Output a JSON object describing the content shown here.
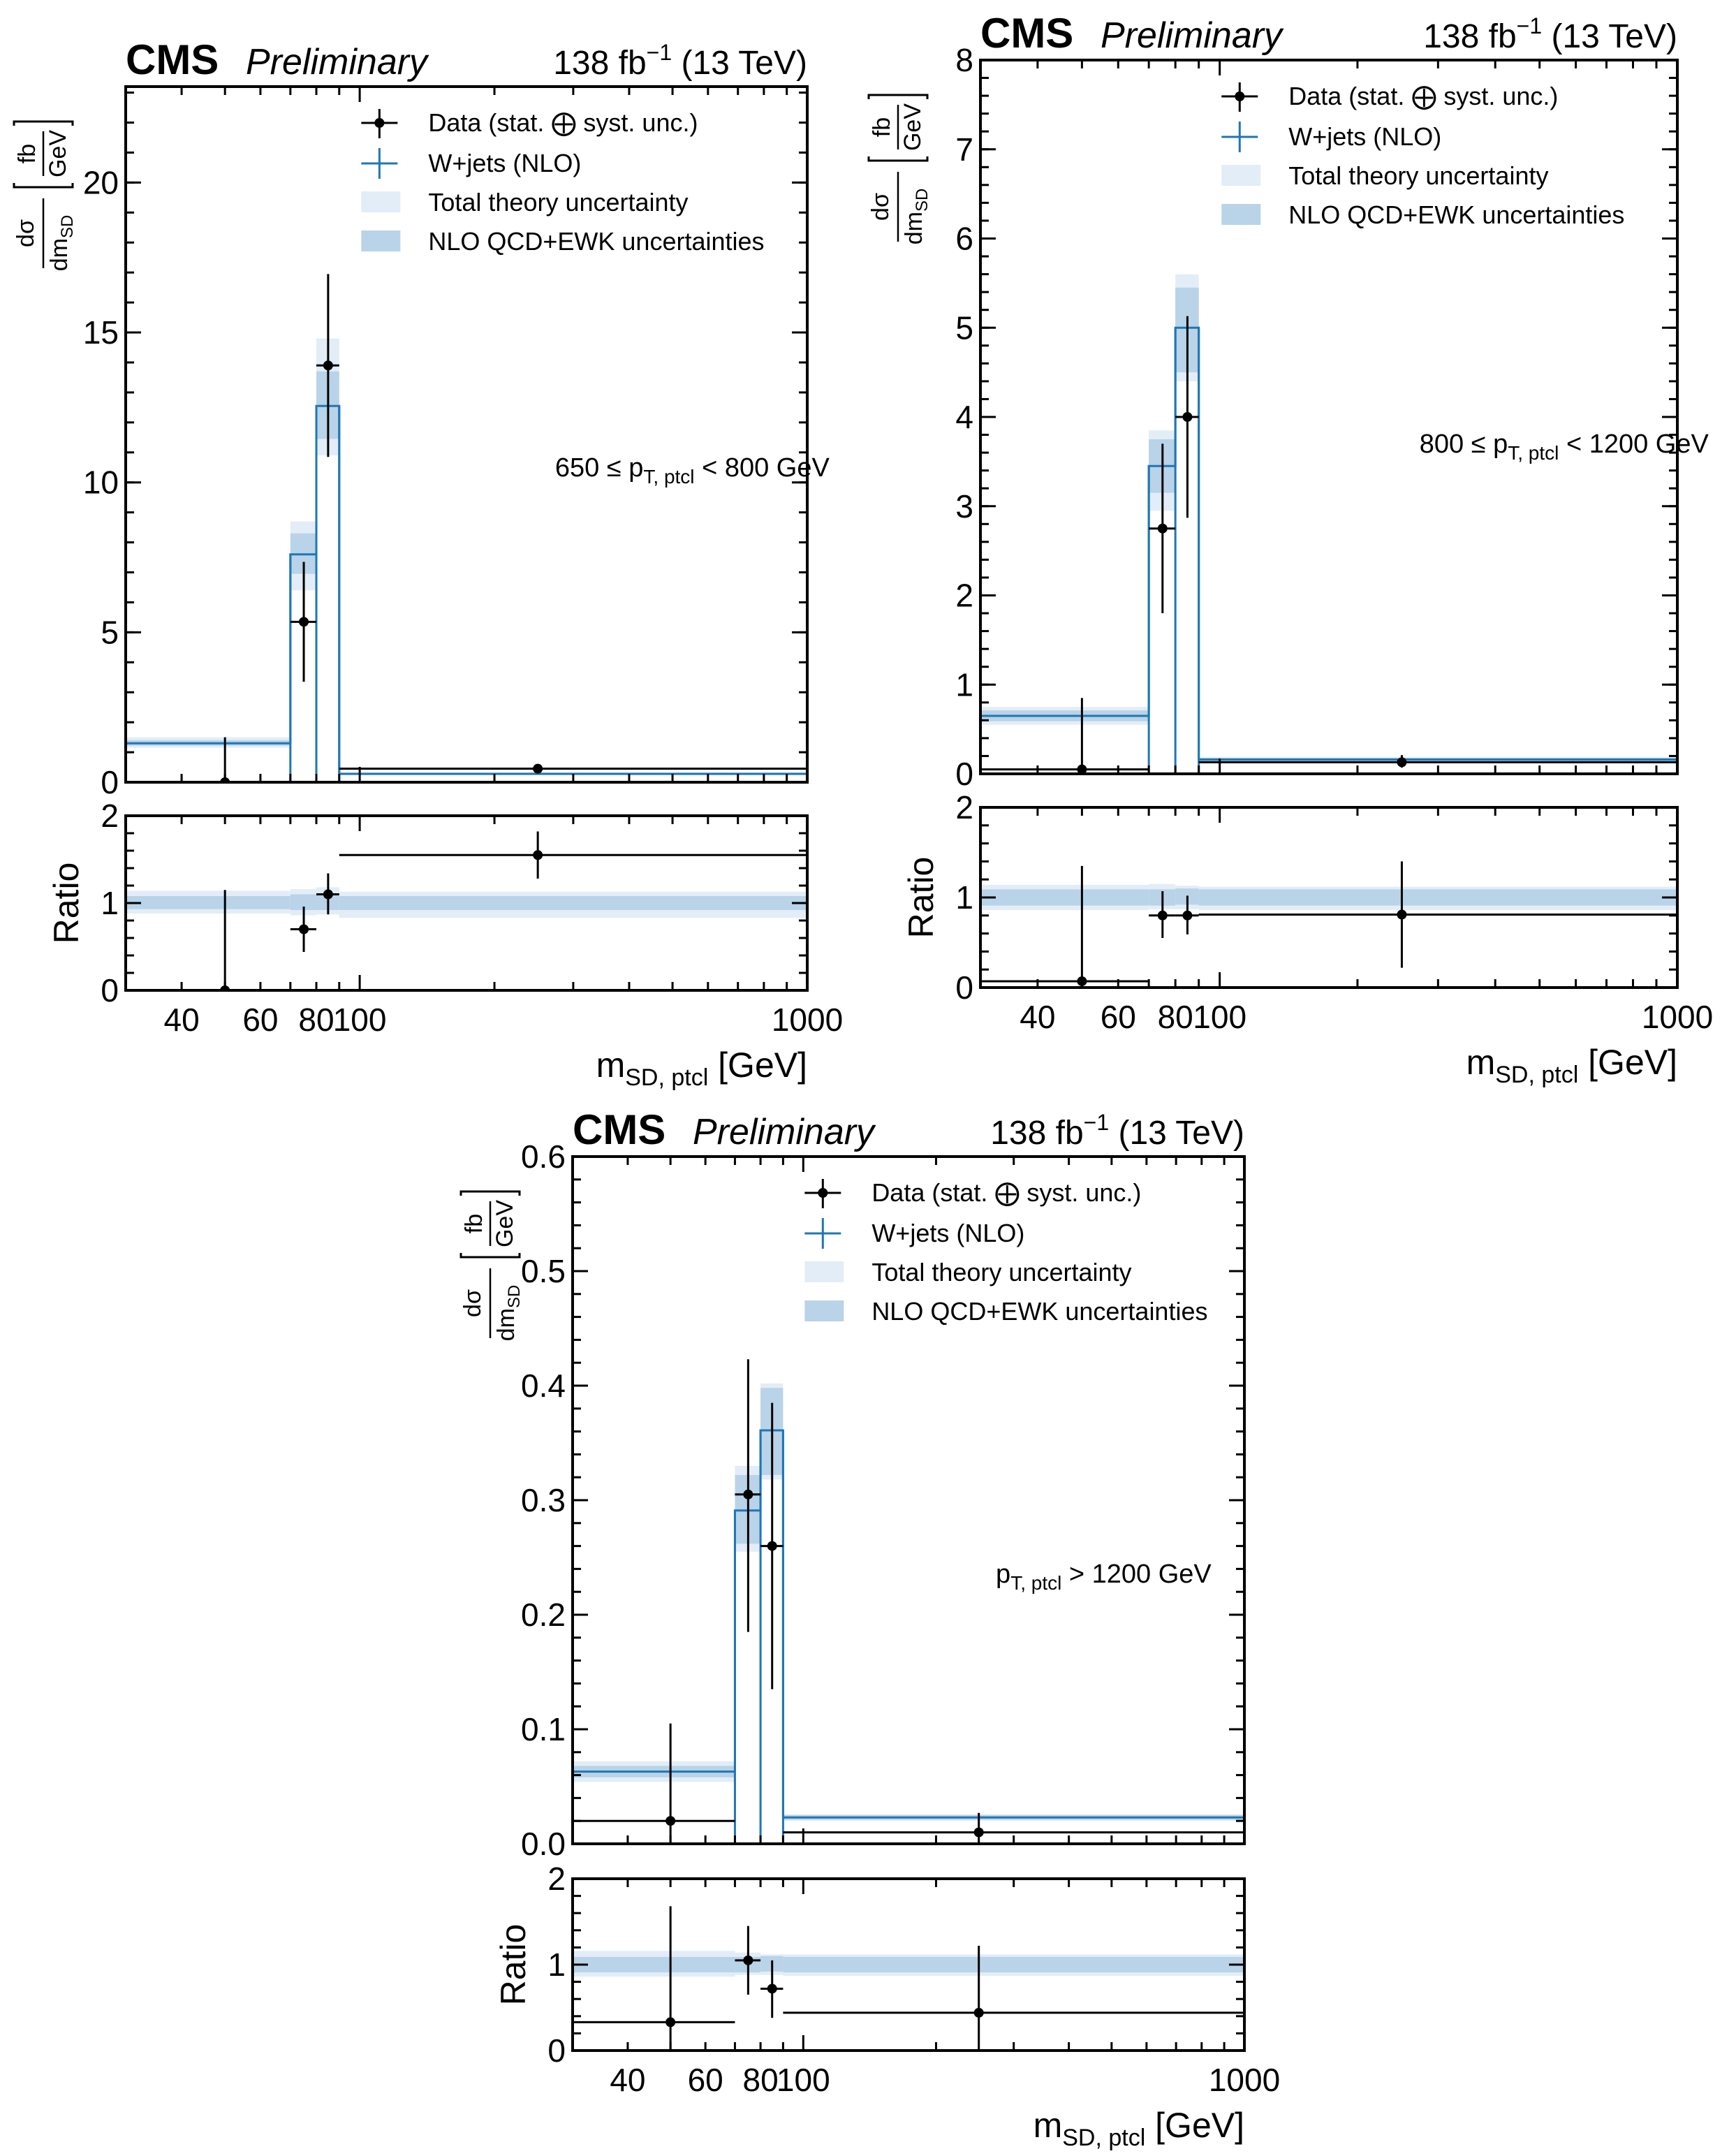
{
  "chart_data": [
    {
      "type": "step",
      "experiment": "CMS",
      "status": "Preliminary",
      "lumi": "138 fb",
      "lumi_exp": "−1",
      "energy": "(13 TeV)",
      "region": "650 ≤ p",
      "region_sub": "T, ptcl",
      "region_tail": " < 800 GeV",
      "ylabel_num": "dσ",
      "ylabel_den": "dm",
      "ylabel_den_sub": "SD",
      "yunit_num": "fb",
      "yunit_den": "GeV",
      "ratio_label": "Ratio",
      "xlabel": "m",
      "xlabel_sub": "SD, ptcl",
      "xlabel_tail": " [GeV]",
      "x_scale": "log",
      "xlim": [
        30,
        1000
      ],
      "x_ticks": [
        40,
        60,
        80,
        100,
        1000
      ],
      "x_tick_labels": [
        "40",
        "60",
        "80",
        "100",
        "1000"
      ],
      "x_display_edges": [
        30,
        70,
        80,
        90,
        1000
      ],
      "ylim": [
        0,
        23.2
      ],
      "y_ticks": [
        0,
        5,
        10,
        15,
        20
      ],
      "y_tick_labels": [
        "0",
        "5",
        "10",
        "15",
        "20"
      ],
      "ratio_ylim": [
        0,
        2
      ],
      "ratio_ticks": [
        0,
        1,
        2
      ],
      "ratio_tick_labels": [
        "0",
        "1",
        "2"
      ],
      "legend": {
        "placement": "top-right",
        "entries": [
          "Data (stat. ⨁ syst. unc.)",
          "W+jets (NLO)",
          "Total theory uncertainty",
          "NLO QCD+EWK uncertainties"
        ]
      },
      "bins": [
        {
          "x_center": 50,
          "mc": 1.3,
          "nlo_band": [
            1.22,
            1.4
          ],
          "total_band": [
            1.15,
            1.5
          ],
          "data": 0.0,
          "data_err": [
            0.0,
            1.5
          ],
          "ratio": 0.0,
          "ratio_err": [
            0.0,
            1.15
          ],
          "ratio_nlo": [
            0.93,
            1.08
          ],
          "ratio_total": [
            0.88,
            1.14
          ]
        },
        {
          "x_center": 75,
          "mc": 7.6,
          "nlo_band": [
            6.95,
            8.3
          ],
          "total_band": [
            6.4,
            8.7
          ],
          "data": 5.35,
          "data_err": [
            3.35,
            7.35
          ],
          "ratio": 0.7,
          "ratio_err": [
            0.44,
            0.96
          ],
          "ratio_nlo": [
            0.92,
            1.1
          ],
          "ratio_total": [
            0.86,
            1.16
          ]
        },
        {
          "x_center": 85,
          "mc": 12.55,
          "nlo_band": [
            11.45,
            13.7
          ],
          "total_band": [
            10.9,
            14.8
          ],
          "data": 13.9,
          "data_err": [
            10.85,
            16.95
          ],
          "ratio": 1.1,
          "ratio_err": [
            0.87,
            1.34
          ],
          "ratio_nlo": [
            0.92,
            1.1
          ],
          "ratio_total": [
            0.87,
            1.18
          ]
        },
        {
          "x_center": 250,
          "mc": 0.28,
          "nlo_band": [
            0.25,
            0.31
          ],
          "total_band": [
            0.23,
            0.33
          ],
          "data": 0.45,
          "data_err": [
            0.38,
            0.52
          ],
          "ratio": 1.55,
          "ratio_err": [
            1.28,
            1.82
          ],
          "ratio_nlo": [
            0.92,
            1.08
          ],
          "ratio_total": [
            0.83,
            1.13
          ]
        }
      ]
    },
    {
      "type": "step",
      "experiment": "CMS",
      "status": "Preliminary",
      "lumi": "138 fb",
      "lumi_exp": "−1",
      "energy": "(13 TeV)",
      "region": "800 ≤ p",
      "region_sub": "T, ptcl",
      "region_tail": " < 1200 GeV",
      "ylabel_num": "dσ",
      "ylabel_den": "dm",
      "ylabel_den_sub": "SD",
      "yunit_num": "fb",
      "yunit_den": "GeV",
      "ratio_label": "Ratio",
      "xlabel": "m",
      "xlabel_sub": "SD, ptcl",
      "xlabel_tail": " [GeV]",
      "x_scale": "log",
      "xlim": [
        30,
        1000
      ],
      "x_ticks": [
        40,
        60,
        80,
        100,
        1000
      ],
      "x_tick_labels": [
        "40",
        "60",
        "80",
        "100",
        "1000"
      ],
      "x_display_edges": [
        30,
        70,
        80,
        90,
        1000
      ],
      "ylim": [
        0,
        8
      ],
      "y_ticks": [
        0,
        1,
        2,
        3,
        4,
        5,
        6,
        7,
        8
      ],
      "y_tick_labels": [
        "0",
        "1",
        "2",
        "3",
        "4",
        "5",
        "6",
        "7",
        "8"
      ],
      "ratio_ylim": [
        0,
        2
      ],
      "ratio_ticks": [
        0,
        1,
        2
      ],
      "ratio_tick_labels": [
        "0",
        "1",
        "2"
      ],
      "legend": {
        "placement": "top-right",
        "entries": [
          "Data (stat. ⨁ syst. unc.)",
          "W+jets (NLO)",
          "Total theory uncertainty",
          "NLO QCD+EWK uncertainties"
        ]
      },
      "bins": [
        {
          "x_center": 50,
          "mc": 0.65,
          "nlo_band": [
            0.59,
            0.71
          ],
          "total_band": [
            0.55,
            0.75
          ],
          "data": 0.05,
          "data_err": [
            0.0,
            0.85
          ],
          "ratio": 0.07,
          "ratio_err": [
            0.0,
            1.35
          ],
          "ratio_nlo": [
            0.91,
            1.09
          ],
          "ratio_total": [
            0.86,
            1.14
          ]
        },
        {
          "x_center": 75,
          "mc": 3.45,
          "nlo_band": [
            3.15,
            3.75
          ],
          "total_band": [
            2.95,
            3.85
          ],
          "data": 2.75,
          "data_err": [
            1.8,
            3.7
          ],
          "ratio": 0.8,
          "ratio_err": [
            0.55,
            1.07
          ],
          "ratio_nlo": [
            0.91,
            1.09
          ],
          "ratio_total": [
            0.87,
            1.15
          ]
        },
        {
          "x_center": 85,
          "mc": 5.0,
          "nlo_band": [
            4.5,
            5.45
          ],
          "total_band": [
            4.4,
            5.6
          ],
          "data": 4.0,
          "data_err": [
            2.87,
            5.13
          ],
          "ratio": 0.8,
          "ratio_err": [
            0.59,
            1.02
          ],
          "ratio_nlo": [
            0.92,
            1.1
          ],
          "ratio_total": [
            0.87,
            1.13
          ]
        },
        {
          "x_center": 250,
          "mc": 0.16,
          "nlo_band": [
            0.14,
            0.18
          ],
          "total_band": [
            0.13,
            0.19
          ],
          "data": 0.13,
          "data_err": [
            0.07,
            0.21
          ],
          "ratio": 0.81,
          "ratio_err": [
            0.22,
            1.4
          ],
          "ratio_nlo": [
            0.91,
            1.09
          ],
          "ratio_total": [
            0.86,
            1.12
          ]
        }
      ]
    },
    {
      "type": "step",
      "experiment": "CMS",
      "status": "Preliminary",
      "lumi": "138 fb",
      "lumi_exp": "−1",
      "energy": "(13 TeV)",
      "region": "p",
      "region_sub": "T, ptcl",
      "region_tail": " > 1200 GeV",
      "ylabel_num": "dσ",
      "ylabel_den": "dm",
      "ylabel_den_sub": "SD",
      "yunit_num": "fb",
      "yunit_den": "GeV",
      "ratio_label": "Ratio",
      "xlabel": "m",
      "xlabel_sub": "SD, ptcl",
      "xlabel_tail": " [GeV]",
      "x_scale": "log",
      "xlim": [
        30,
        1000
      ],
      "x_ticks": [
        40,
        60,
        80,
        100,
        1000
      ],
      "x_tick_labels": [
        "40",
        "60",
        "80",
        "100",
        "1000"
      ],
      "x_display_edges": [
        30,
        70,
        80,
        90,
        1000
      ],
      "ylim": [
        0,
        0.6
      ],
      "y_ticks": [
        0,
        0.1,
        0.2,
        0.3,
        0.4,
        0.5,
        0.6
      ],
      "y_tick_labels": [
        "0.0",
        "0.1",
        "0.2",
        "0.3",
        "0.4",
        "0.5",
        "0.6"
      ],
      "ratio_ylim": [
        0,
        2
      ],
      "ratio_ticks": [
        0,
        1,
        2
      ],
      "ratio_tick_labels": [
        "0",
        "1",
        "2"
      ],
      "legend": {
        "placement": "top-right",
        "entries": [
          "Data (stat. ⨁ syst. unc.)",
          "W+jets (NLO)",
          "Total theory uncertainty",
          "NLO QCD+EWK uncertainties"
        ]
      },
      "bins": [
        {
          "x_center": 50,
          "mc": 0.063,
          "nlo_band": [
            0.058,
            0.068
          ],
          "total_band": [
            0.054,
            0.072
          ],
          "data": 0.02,
          "data_err": [
            0.0,
            0.105
          ],
          "ratio": 0.33,
          "ratio_err": [
            0.0,
            1.68
          ],
          "ratio_nlo": [
            0.91,
            1.09
          ],
          "ratio_total": [
            0.86,
            1.16
          ]
        },
        {
          "x_center": 75,
          "mc": 0.291,
          "nlo_band": [
            0.262,
            0.322
          ],
          "total_band": [
            0.255,
            0.33
          ],
          "data": 0.305,
          "data_err": [
            0.185,
            0.423
          ],
          "ratio": 1.05,
          "ratio_err": [
            0.65,
            1.45
          ],
          "ratio_nlo": [
            0.91,
            1.09
          ],
          "ratio_total": [
            0.88,
            1.14
          ]
        },
        {
          "x_center": 85,
          "mc": 0.361,
          "nlo_band": [
            0.322,
            0.398
          ],
          "total_band": [
            0.318,
            0.402
          ],
          "data": 0.26,
          "data_err": [
            0.135,
            0.385
          ],
          "ratio": 0.72,
          "ratio_err": [
            0.38,
            1.05
          ],
          "ratio_nlo": [
            0.92,
            1.1
          ],
          "ratio_total": [
            0.88,
            1.12
          ]
        },
        {
          "x_center": 250,
          "mc": 0.023,
          "nlo_band": [
            0.021,
            0.025
          ],
          "total_band": [
            0.02,
            0.026
          ],
          "data": 0.01,
          "data_err": [
            0.0,
            0.027
          ],
          "ratio": 0.44,
          "ratio_err": [
            0.0,
            1.22
          ],
          "ratio_nlo": [
            0.91,
            1.09
          ],
          "ratio_total": [
            0.87,
            1.12
          ]
        }
      ]
    }
  ],
  "colors": {
    "mc_line": "#1f77b4",
    "nlo_band": "#b9d3e8",
    "total_band": "#e3edf7",
    "data": "#000000"
  }
}
